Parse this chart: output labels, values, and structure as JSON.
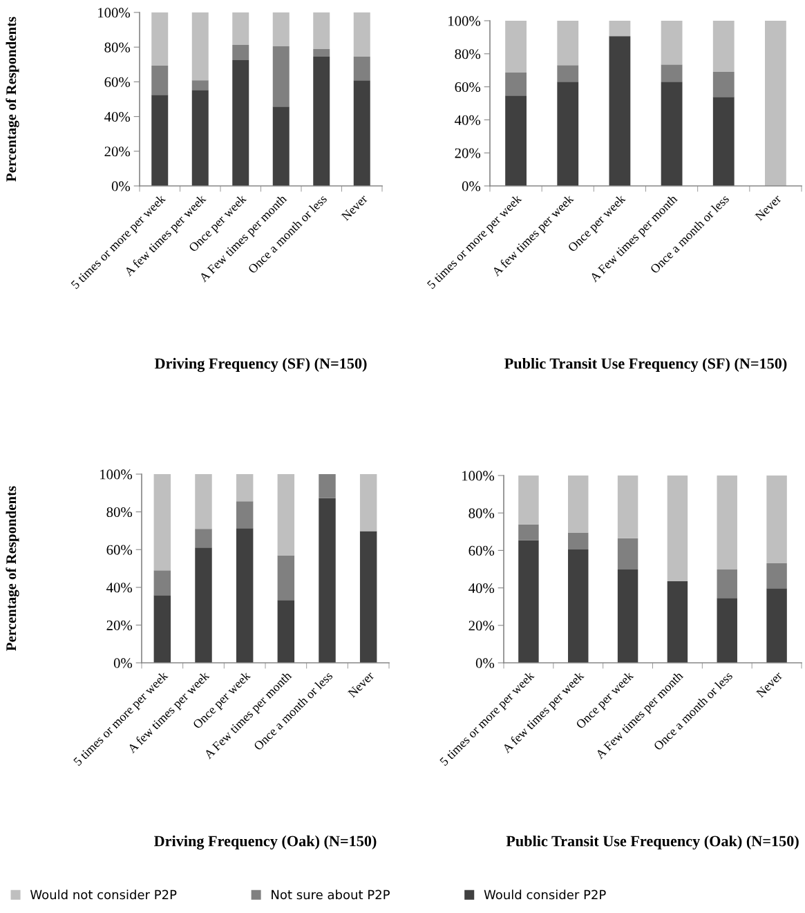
{
  "chart_data": [
    {
      "type": "bar",
      "stacked": true,
      "title": "Driving Frequency (SF) (N=150)",
      "ylabel": "Percentage of Respondents",
      "legend": "bottom",
      "categories": [
        "5 times or more per week",
        "A few times per week",
        "Once per week",
        "A Few times per month",
        "Once a month or less",
        "Never"
      ],
      "series": [
        {
          "name": "Would consider P2P",
          "color": "#404040",
          "values": [
            52.5,
            55.3,
            72.5,
            45.7,
            74.5,
            60.9
          ]
        },
        {
          "name": "Not sure about P2P",
          "color": "#808080",
          "values": [
            16.8,
            5.6,
            8.8,
            34.8,
            4.4,
            13.6
          ]
        },
        {
          "name": "Would not consider P2P",
          "color": "#bfbfbf",
          "values": [
            30.7,
            39.1,
            18.7,
            19.5,
            21.1,
            25.5
          ]
        }
      ],
      "ylim": [
        0,
        100
      ],
      "yticks": [
        {
          "value": 0,
          "label": "0%"
        },
        {
          "value": 20,
          "label": "20%"
        },
        {
          "value": 40,
          "label": "40%"
        },
        {
          "value": 60,
          "label": "60%"
        },
        {
          "value": 80,
          "label": "80%"
        },
        {
          "value": 100,
          "label": "100%"
        }
      ]
    },
    {
      "type": "bar",
      "stacked": true,
      "title": "Public Transit Use Frequency (SF) (N=150)",
      "categories": [
        "5 times or more per week",
        "A few times per week",
        "Once per week",
        "A Few times per month",
        "Once a month or less",
        "Never"
      ],
      "series": [
        {
          "color": "#404040",
          "values": [
            54.7,
            63.1,
            90.7,
            63.1,
            53.9,
            0
          ]
        },
        {
          "color": "#808080",
          "values": [
            13.9,
            10.0,
            0,
            10.4,
            15.1,
            0
          ]
        },
        {
          "color": "#bfbfbf",
          "values": [
            31.4,
            26.9,
            9.3,
            26.5,
            31.0,
            100
          ]
        }
      ],
      "ylim": [
        0,
        100
      ],
      "yticks": [
        {
          "value": 0,
          "label": "0%"
        },
        {
          "value": 20,
          "label": "20%"
        },
        {
          "value": 40,
          "label": "40%"
        },
        {
          "value": 60,
          "label": "60%"
        },
        {
          "value": 80,
          "label": "80%"
        },
        {
          "value": 100,
          "label": "100%"
        }
      ]
    },
    {
      "type": "bar",
      "stacked": true,
      "title": "Driving Frequency (Oak) (N=150)",
      "ylabel": "Percentage of Respondents",
      "categories": [
        "5 times or more per week",
        "A few times per week",
        "Once per week",
        "A Few times per month",
        "Once a month or less",
        "Never"
      ],
      "series": [
        {
          "color": "#404040",
          "values": [
            35.8,
            61.1,
            71.3,
            33.2,
            87.4,
            69.8
          ]
        },
        {
          "color": "#808080",
          "values": [
            13.2,
            9.9,
            14.3,
            23.8,
            12.6,
            0
          ]
        },
        {
          "color": "#bfbfbf",
          "values": [
            51.0,
            29.1,
            14.4,
            43.0,
            0,
            30.2
          ]
        }
      ],
      "ylim": [
        0,
        100
      ],
      "yticks": [
        {
          "value": 0,
          "label": "0%"
        },
        {
          "value": 20,
          "label": "20%"
        },
        {
          "value": 40,
          "label": "40%"
        },
        {
          "value": 60,
          "label": "60%"
        },
        {
          "value": 80,
          "label": "80%"
        },
        {
          "value": 100,
          "label": "100%"
        }
      ]
    },
    {
      "type": "bar",
      "stacked": true,
      "title": "Public Transit Use Frequency (Oak) (N=150)",
      "categories": [
        "5 times or more per week",
        "A few times per week",
        "Once per week",
        "A Few times per month",
        "Once a month or less",
        "Never"
      ],
      "series": [
        {
          "color": "#404040",
          "values": [
            65.4,
            60.5,
            49.8,
            43.5,
            34.6,
            39.8
          ]
        },
        {
          "color": "#808080",
          "values": [
            8.5,
            8.9,
            16.7,
            0,
            15.2,
            13.3
          ]
        },
        {
          "color": "#bfbfbf",
          "values": [
            26.1,
            30.6,
            33.5,
            56.5,
            50.2,
            46.9
          ]
        }
      ],
      "ylim": [
        0,
        100
      ],
      "yticks": [
        {
          "value": 0,
          "label": "0%"
        },
        {
          "value": 20,
          "label": "20%"
        },
        {
          "value": 40,
          "label": "40%"
        },
        {
          "value": 60,
          "label": "60%"
        },
        {
          "value": 80,
          "label": "80%"
        },
        {
          "value": 100,
          "label": "100%"
        }
      ]
    }
  ]
}
